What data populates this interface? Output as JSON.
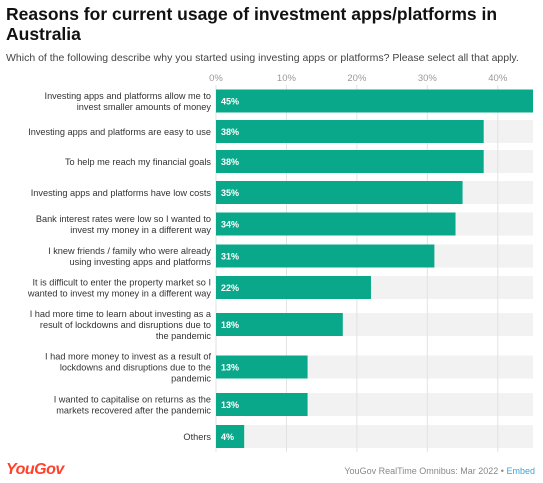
{
  "title": "Reasons for current usage of investment apps/platforms in Australia",
  "subtitle": "Which of the following describe why you started using investing apps or platforms? Please select all that apply.",
  "footer": {
    "logo": "YouGov",
    "source": "YouGov RealTime Omnibus: Mar 2022",
    "separator": "•",
    "embed": "Embed"
  },
  "colors": {
    "bar": "#0aa88a",
    "track": "#f2f2f2",
    "logo": "#ff412c",
    "embed": "#3aa6d8"
  },
  "chart_data": {
    "type": "bar",
    "orientation": "horizontal",
    "categories": [
      [
        "Investing apps and platforms allow me to",
        "invest smaller amounts of money"
      ],
      [
        "Investing apps and platforms are easy to use"
      ],
      [
        "To help me reach my financial goals"
      ],
      [
        "Investing apps and platforms have low costs"
      ],
      [
        "Bank interest rates were low so I wanted to",
        "invest my money in a different way"
      ],
      [
        "I knew friends / family who were already",
        "using investing apps and platforms"
      ],
      [
        "It is difficult to enter the property market so I",
        "wanted to invest my money in a different way"
      ],
      [
        "I had more time to learn about investing as a",
        "result of lockdowns and disruptions due to",
        "the pandemic"
      ],
      [
        "I had more money to invest as a result of",
        "lockdowns and disruptions due to the",
        "pandemic"
      ],
      [
        "I wanted to capitalise on returns as the",
        "markets recovered after the pandemic"
      ],
      [
        "Others"
      ]
    ],
    "values": [
      45,
      38,
      38,
      35,
      34,
      31,
      22,
      18,
      13,
      13,
      4
    ],
    "value_labels": [
      "45%",
      "38%",
      "38%",
      "35%",
      "34%",
      "31%",
      "22%",
      "18%",
      "13%",
      "13%",
      "4%"
    ],
    "xlim": [
      0,
      45
    ],
    "xticks": [
      0,
      10,
      20,
      30,
      40
    ],
    "xtick_labels": [
      "0%",
      "10%",
      "20%",
      "30%",
      "40%"
    ],
    "grid": true,
    "axis_position": "top"
  }
}
